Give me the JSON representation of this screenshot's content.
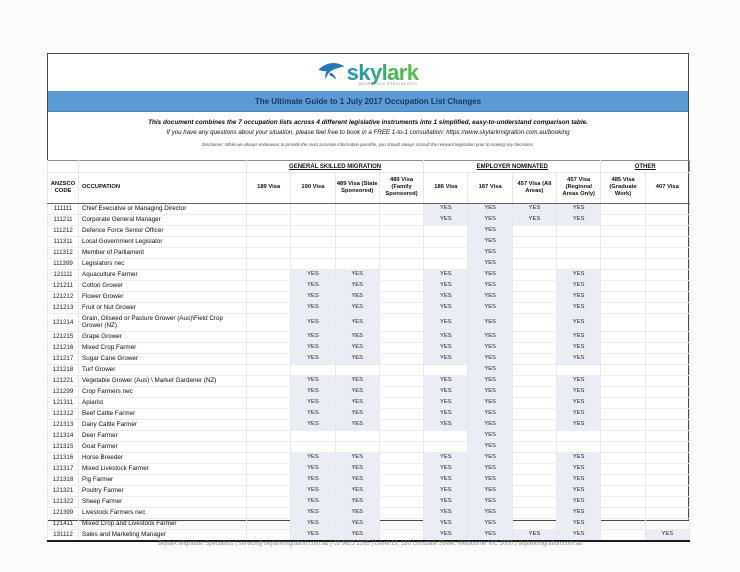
{
  "logo": {
    "brand": "skylark",
    "tagline": "MIGRATION SPECIALISTS"
  },
  "banner": {
    "title": "The Ultimate Guide to 1 July 2017 Occupation List Changes"
  },
  "intro": {
    "line1": "This document combines the 7 occupation lists across 4 different legislative instruments into 1 simplified, easy-to-understand comparison table.",
    "line2_prefix": "If you have any questions about your situation, please feel free to book in a FREE 1-to-1 consultation: ",
    "booking_url": "https://www.skylarkmigration.com.au/booking",
    "disclaimer": "Disclaimer: While we always endeavour to provide the most accurate information possible, you should always consult the relevant legislation prior to making any decisions."
  },
  "table": {
    "code_header": "ANZSCO CODE",
    "occupation_header": "OCCUPATION",
    "groups": [
      {
        "label": "GENERAL SKILLED MIGRATION",
        "span": 4
      },
      {
        "label": "EMPLOYER NOMINATED",
        "span": 4
      },
      {
        "label": "OTHER",
        "span": 2
      }
    ],
    "visa_columns": [
      "189 Visa",
      "190 Visa",
      "489 Visa (State Sponsored)",
      "489 Visa (Family Sponsored)",
      "186 Visa",
      "187 Visa",
      "457 Visa (All Areas)",
      "457 Visa (Regional Areas Only)",
      "485 Visa (Graduate Work)",
      "407 Visa"
    ],
    "rows": [
      {
        "code": "111111",
        "occupation": "Chief Executive or Managing Director",
        "visas": [
          "",
          "",
          "",
          "",
          "YES",
          "YES",
          "YES",
          "YES",
          "",
          ""
        ]
      },
      {
        "code": "111211",
        "occupation": "Corporate General Manager",
        "visas": [
          "",
          "",
          "",
          "",
          "YES",
          "YES",
          "YES",
          "YES",
          "",
          ""
        ]
      },
      {
        "code": "111212",
        "occupation": "Defence Force Senior Officer",
        "visas": [
          "",
          "",
          "",
          "",
          "",
          "YES",
          "",
          "",
          "",
          ""
        ]
      },
      {
        "code": "111311",
        "occupation": "Local Government Legislator",
        "visas": [
          "",
          "",
          "",
          "",
          "",
          "YES",
          "",
          "",
          "",
          ""
        ]
      },
      {
        "code": "111312",
        "occupation": "Member of Parliament",
        "visas": [
          "",
          "",
          "",
          "",
          "",
          "YES",
          "",
          "",
          "",
          ""
        ]
      },
      {
        "code": "111399",
        "occupation": "Legislators nec",
        "visas": [
          "",
          "",
          "",
          "",
          "",
          "YES",
          "",
          "",
          "",
          ""
        ]
      },
      {
        "code": "121111",
        "occupation": "Aquaculture Farmer",
        "visas": [
          "",
          "YES",
          "YES",
          "",
          "YES",
          "YES",
          "",
          "YES",
          "",
          ""
        ]
      },
      {
        "code": "121211",
        "occupation": "Cotton Grower",
        "visas": [
          "",
          "YES",
          "YES",
          "",
          "YES",
          "YES",
          "",
          "YES",
          "",
          ""
        ]
      },
      {
        "code": "121212",
        "occupation": "Flower Grower",
        "visas": [
          "",
          "YES",
          "YES",
          "",
          "YES",
          "YES",
          "",
          "YES",
          "",
          ""
        ]
      },
      {
        "code": "121213",
        "occupation": "Fruit or Nut Grower",
        "visas": [
          "",
          "YES",
          "YES",
          "",
          "YES",
          "YES",
          "",
          "YES",
          "",
          ""
        ]
      },
      {
        "code": "121214",
        "occupation": "Grain, Oilseed or Pasture Grower (Aus)\\Field Crop Grower (NZ)",
        "visas": [
          "",
          "YES",
          "YES",
          "",
          "YES",
          "YES",
          "",
          "YES",
          "",
          ""
        ]
      },
      {
        "code": "121215",
        "occupation": "Grape Grower",
        "visas": [
          "",
          "YES",
          "YES",
          "",
          "YES",
          "YES",
          "",
          "YES",
          "",
          ""
        ]
      },
      {
        "code": "121216",
        "occupation": "Mixed Crop Farmer",
        "visas": [
          "",
          "YES",
          "YES",
          "",
          "YES",
          "YES",
          "",
          "YES",
          "",
          ""
        ]
      },
      {
        "code": "121217",
        "occupation": "Sugar Cane Grower",
        "visas": [
          "",
          "YES",
          "YES",
          "",
          "YES",
          "YES",
          "",
          "YES",
          "",
          ""
        ]
      },
      {
        "code": "121218",
        "occupation": "Turf Grower",
        "visas": [
          "",
          "",
          "",
          "",
          "",
          "YES",
          "",
          "",
          "",
          ""
        ]
      },
      {
        "code": "121221",
        "occupation": "Vegetable Grower (Aus) \\ Market Gardener (NZ)",
        "visas": [
          "",
          "YES",
          "YES",
          "",
          "YES",
          "YES",
          "",
          "YES",
          "",
          ""
        ]
      },
      {
        "code": "121299",
        "occupation": "Crop Farmers nec",
        "visas": [
          "",
          "YES",
          "YES",
          "",
          "YES",
          "YES",
          "",
          "YES",
          "",
          ""
        ]
      },
      {
        "code": "121311",
        "occupation": "Apiarist",
        "visas": [
          "",
          "YES",
          "YES",
          "",
          "YES",
          "YES",
          "",
          "YES",
          "",
          ""
        ]
      },
      {
        "code": "121312",
        "occupation": "Beef Cattle Farmer",
        "visas": [
          "",
          "YES",
          "YES",
          "",
          "YES",
          "YES",
          "",
          "YES",
          "",
          ""
        ]
      },
      {
        "code": "121313",
        "occupation": "Dairy Cattle Farmer",
        "visas": [
          "",
          "YES",
          "YES",
          "",
          "YES",
          "YES",
          "",
          "YES",
          "",
          ""
        ]
      },
      {
        "code": "121314",
        "occupation": "Deer Farmer",
        "visas": [
          "",
          "",
          "",
          "",
          "",
          "YES",
          "",
          "",
          "",
          ""
        ]
      },
      {
        "code": "121315",
        "occupation": "Goat Farmer",
        "visas": [
          "",
          "",
          "",
          "",
          "",
          "YES",
          "",
          "",
          "",
          ""
        ]
      },
      {
        "code": "121316",
        "occupation": "Horse Breeder",
        "visas": [
          "",
          "YES",
          "YES",
          "",
          "YES",
          "YES",
          "",
          "YES",
          "",
          ""
        ]
      },
      {
        "code": "121317",
        "occupation": "Mixed Livestock Farmer",
        "visas": [
          "",
          "YES",
          "YES",
          "",
          "YES",
          "YES",
          "",
          "YES",
          "",
          ""
        ]
      },
      {
        "code": "121318",
        "occupation": "Pig Farmer",
        "visas": [
          "",
          "YES",
          "YES",
          "",
          "YES",
          "YES",
          "",
          "YES",
          "",
          ""
        ]
      },
      {
        "code": "121321",
        "occupation": "Poultry Farmer",
        "visas": [
          "",
          "YES",
          "YES",
          "",
          "YES",
          "YES",
          "",
          "YES",
          "",
          ""
        ]
      },
      {
        "code": "121322",
        "occupation": "Sheep Farmer",
        "visas": [
          "",
          "YES",
          "YES",
          "",
          "YES",
          "YES",
          "",
          "YES",
          "",
          ""
        ]
      },
      {
        "code": "121399",
        "occupation": "Livestock Farmers nec",
        "visas": [
          "",
          "YES",
          "YES",
          "",
          "YES",
          "YES",
          "",
          "YES",
          "",
          ""
        ]
      },
      {
        "code": "121411",
        "occupation": "Mixed Crop and Livestock Farmer",
        "visas": [
          "",
          "YES",
          "YES",
          "",
          "YES",
          "YES",
          "",
          "YES",
          "",
          ""
        ]
      },
      {
        "code": "131112",
        "occupation": "Sales and Marketing Manager",
        "visas": [
          "",
          "YES",
          "YES",
          "",
          "YES",
          "YES",
          "YES",
          "YES",
          "",
          "YES"
        ]
      }
    ]
  },
  "footer": {
    "text": "Skylark Migration Specialists | service@skylarkmigration.com.au | 03 9623 2265 | Level 19, 180 Lonsdale Street, Melbourne VIC 3000 | skylarkmigration.com.au"
  },
  "colors": {
    "banner_blue": "#5b9bd5",
    "banner_edge": "#4a86ba",
    "title_navy": "#17375d",
    "bird_blue": "#2577b5",
    "bird_blue_dark": "#1d639c",
    "yes_cell_bg": "#eaedf6",
    "brand_gradient": [
      "#2c93ad",
      "#2e9c99",
      "#35a683",
      "#3daf68",
      "#46b656",
      "#4cbb4c",
      "#52bf45"
    ]
  }
}
